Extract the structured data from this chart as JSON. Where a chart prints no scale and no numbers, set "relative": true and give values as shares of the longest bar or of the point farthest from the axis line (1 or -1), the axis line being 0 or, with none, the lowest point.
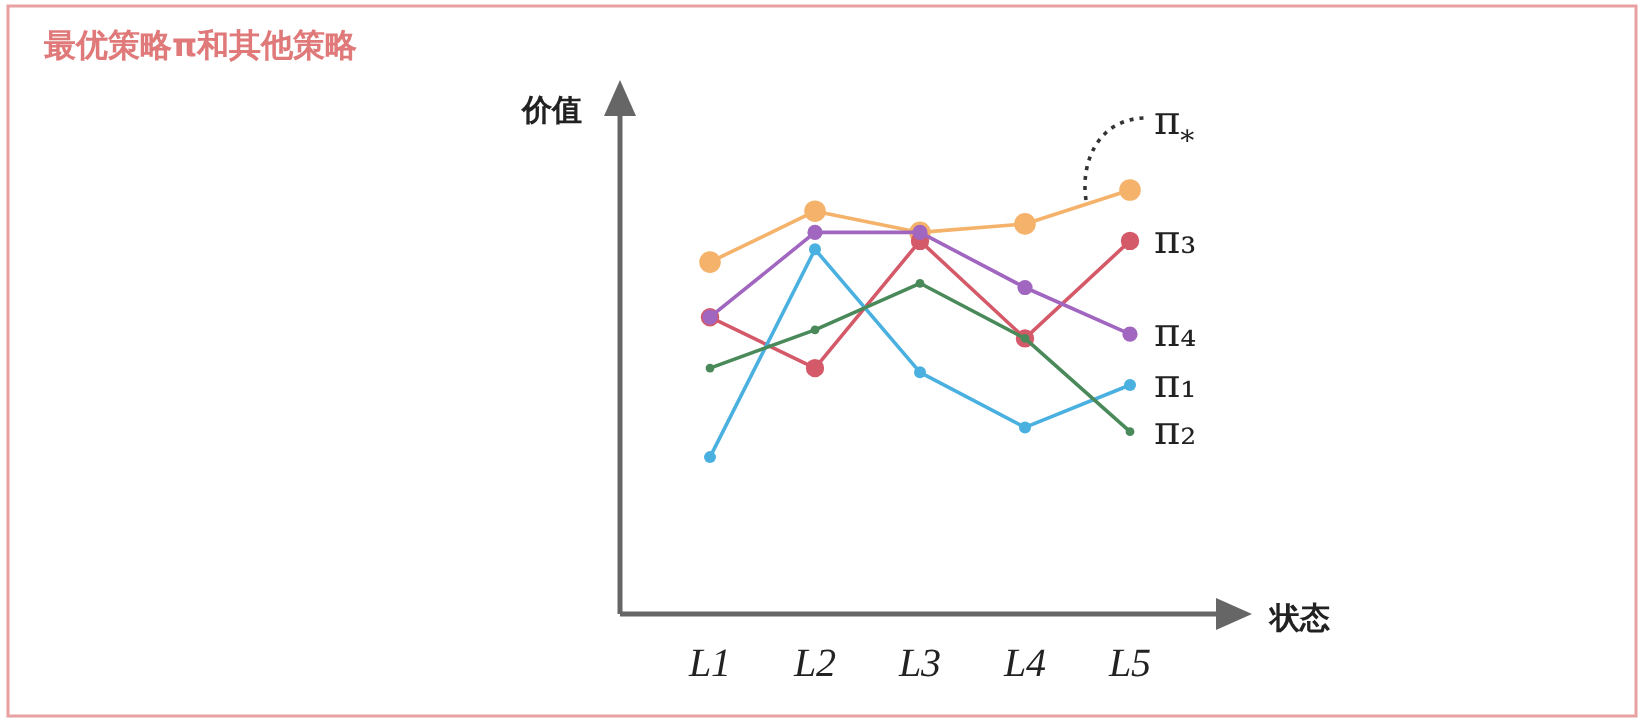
{
  "chart_data": {
    "type": "line",
    "title": "最优策略π和其他策略",
    "ylabel": "价值",
    "xlabel": "状态",
    "relative": true,
    "marker": "circle",
    "categories": [
      "L1",
      "L2",
      "L3",
      "L4",
      "L5"
    ],
    "series": [
      {
        "name": "π$_{*}$",
        "color": "#f5b26b",
        "values": [
          0.83,
          0.95,
          0.9,
          0.92,
          1
        ]
      },
      {
        "name": "π₃",
        "color": "#d45a6a",
        "values": [
          0.7,
          0.58,
          0.88,
          0.65,
          0.88
        ]
      },
      {
        "name": "π₄",
        "color": "#a066c0",
        "values": [
          0.7,
          0.9,
          0.9,
          0.77,
          0.66
        ]
      },
      {
        "name": "π₁",
        "color": "#4ab0e0",
        "values": [
          0.37,
          0.86,
          0.57,
          0.44,
          0.54
        ]
      },
      {
        "name": "π₂",
        "color": "#4a8a5a",
        "values": [
          0.58,
          0.67,
          0.78,
          0.65,
          0.43
        ]
      }
    ]
  }
}
